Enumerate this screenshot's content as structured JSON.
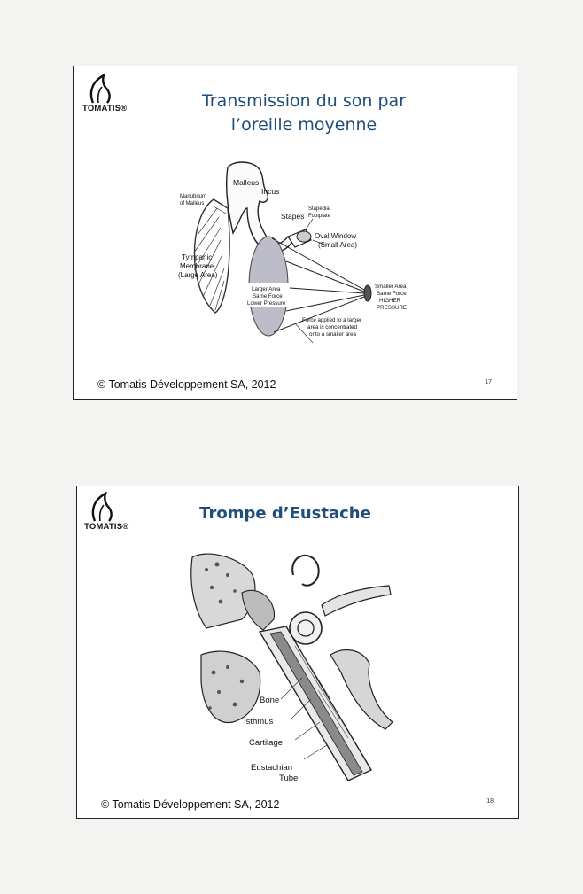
{
  "slides": [
    {
      "logo": "TOMATIS®",
      "title_line1": "Transmission du son par",
      "title_line2": "l’oreille moyenne",
      "labels": {
        "malleus": "Malleus",
        "incus": "Incus",
        "manubrium_l1": "Manubrium",
        "manubrium_l2": "of Malleus",
        "stapes": "Stapes",
        "stapedial_l1": "Stapedial",
        "stapedial_l2": "Footplate",
        "oval_l1": "Oval Window",
        "oval_l2": "(Small Area)",
        "tympanic_l1": "Tympanic",
        "tympanic_l2": "Membrane",
        "tympanic_l3": "(Large Area)",
        "larger_l1": "Larger Area",
        "larger_l2": "Same Force",
        "larger_l3": "Lower Pressure",
        "smaller_l1": "Smaller Area",
        "smaller_l2": "Same Force",
        "smaller_l3": "HIGHER",
        "smaller_l4": "PRESSURE",
        "force_l1": "Force applied to a larger",
        "force_l2": "area is concentrated",
        "force_l3": "onto a smaller area"
      },
      "footer": "© Tomatis Développement SA, 2012",
      "page_number": "17"
    },
    {
      "logo": "TOMATIS®",
      "title": "Trompe d’Eustache",
      "labels": {
        "bone": "Bone",
        "isthmus": "Isthmus",
        "cartilage": "Cartilage",
        "eustachian_l1": "Eustachian",
        "eustachian_l2": "Tube"
      },
      "footer": "© Tomatis Développement SA, 2012",
      "page_number": "18"
    }
  ],
  "colors": {
    "title": "#1f4e79",
    "border": "#222222",
    "page": "#f3f3f1"
  }
}
